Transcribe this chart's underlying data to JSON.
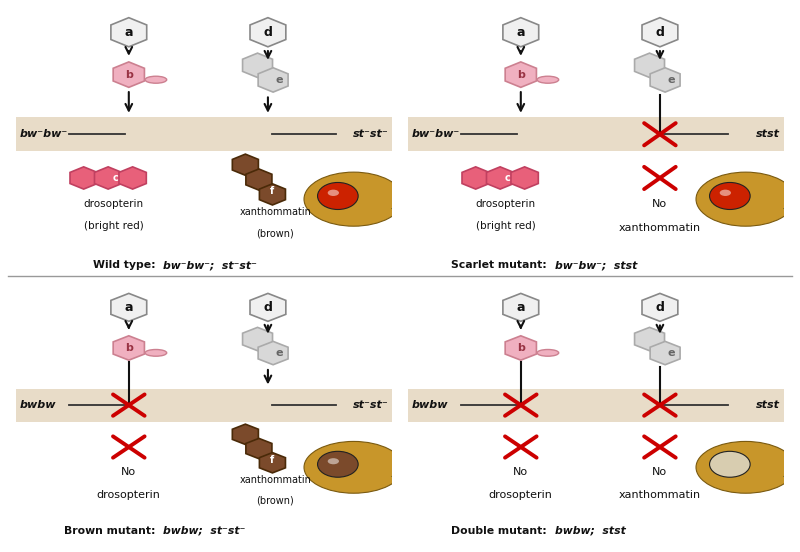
{
  "bg_color": "#ffffff",
  "panel_bg": "#e8dcc8",
  "drosopterin_color": "#e8607a",
  "xanthommatin_color": "#7B4A2B",
  "arrow_color": "#111111",
  "cross_color": "#cc0000",
  "enzyme_b_fill": "#f0b0c0",
  "enzyme_b_edge": "#cc8090",
  "hex_a_fill": "#f0f0f0",
  "hex_a_edge": "#888888",
  "hex_de_fill": "#d8d8d8",
  "hex_de_edge": "#aaaaaa",
  "panels": [
    {
      "title_prefix": "Wild type: ",
      "title_italic": "bw⁻bw⁻;  st⁻st⁻",
      "left_gene": "bw⁻bw⁻",
      "right_gene": "st⁻st⁻",
      "left_blocked": false,
      "right_blocked": false,
      "has_drosopterin": true,
      "has_xanthommatin": true,
      "eye_color": "#cc2200",
      "eye_type": "red"
    },
    {
      "title_prefix": "Scarlet mutant: ",
      "title_italic": "bw⁻bw⁻;  stst",
      "left_gene": "bw⁻bw⁻",
      "right_gene": "stst",
      "left_blocked": false,
      "right_blocked": true,
      "has_drosopterin": true,
      "has_xanthommatin": false,
      "eye_color": "#cc2200",
      "eye_type": "red"
    },
    {
      "title_prefix": "Brown mutant: ",
      "title_italic": "bwbw;  st⁻st⁻",
      "left_gene": "bwbw",
      "right_gene": "st⁻st⁻",
      "left_blocked": true,
      "right_blocked": false,
      "has_drosopterin": false,
      "has_xanthommatin": true,
      "eye_color": "#7B4A2B",
      "eye_type": "brown"
    },
    {
      "title_prefix": "Double mutant: ",
      "title_italic": "bwbw;  stst",
      "left_gene": "bwbw",
      "right_gene": "stst",
      "left_blocked": true,
      "right_blocked": true,
      "has_drosopterin": false,
      "has_xanthommatin": false,
      "eye_color": "#d8cdb0",
      "eye_type": "white"
    }
  ]
}
